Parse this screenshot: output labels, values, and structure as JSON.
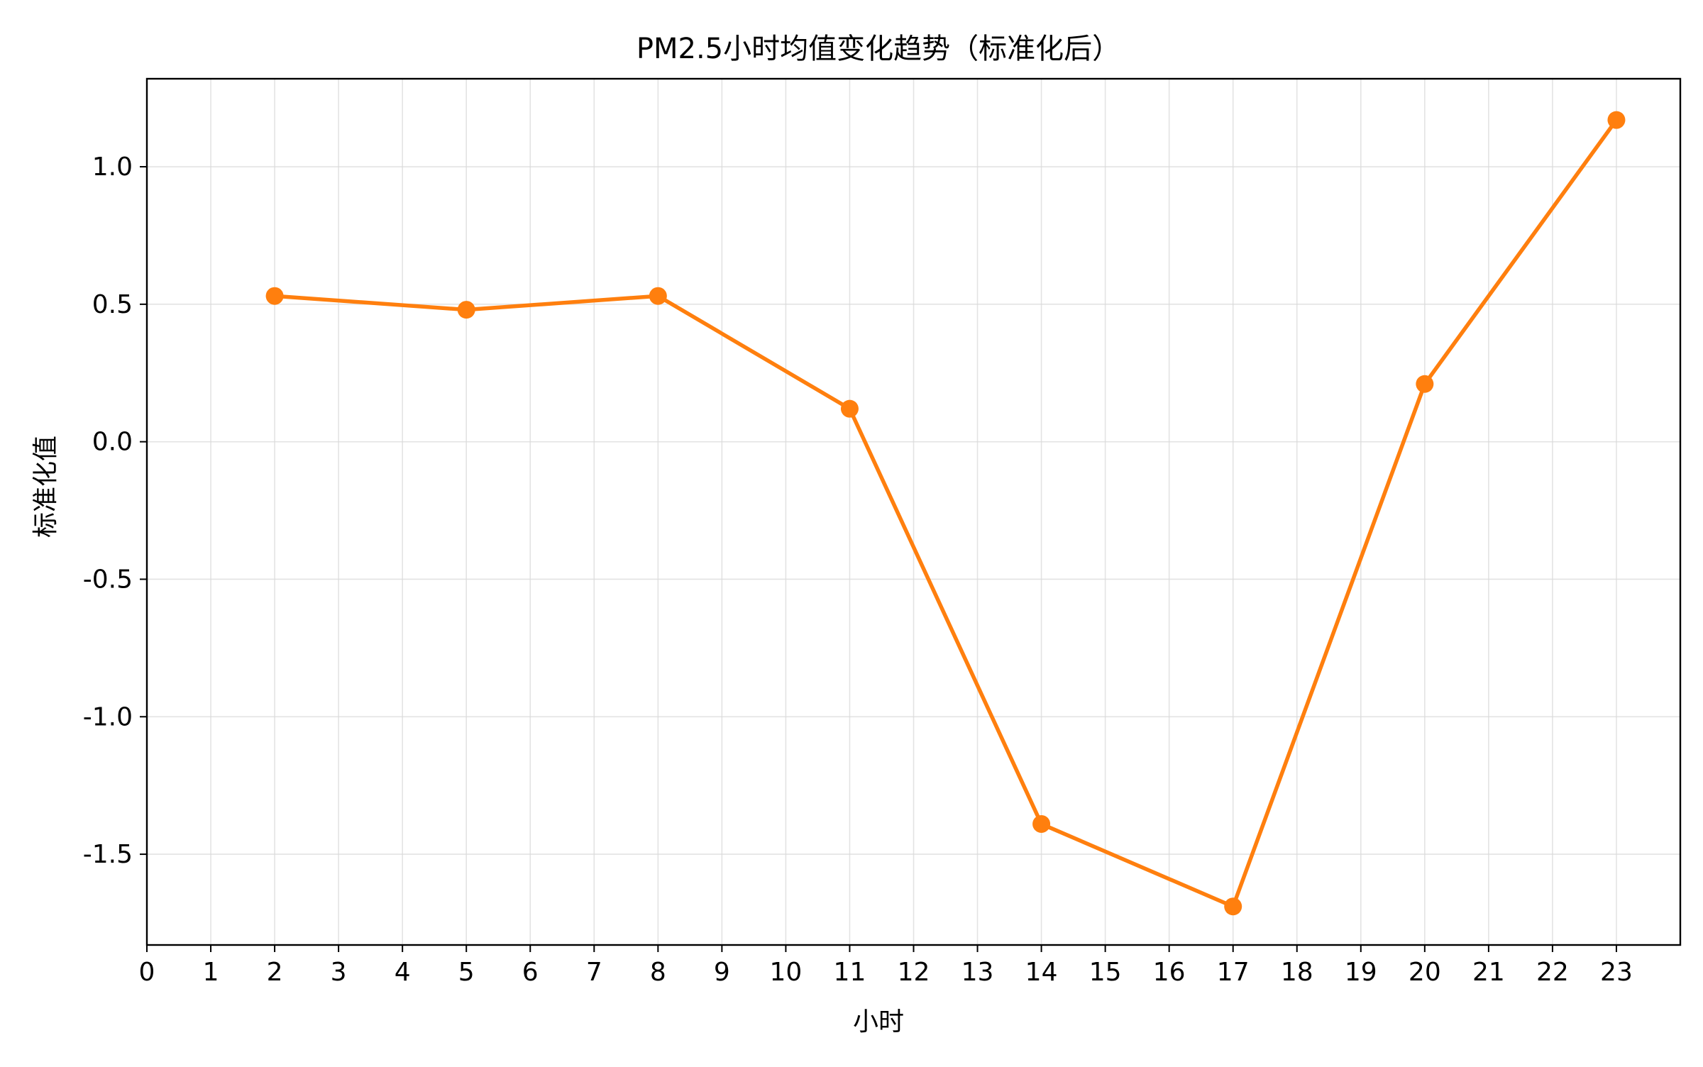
{
  "chart_data": {
    "type": "line",
    "title": "PM2.5小时均值变化趋势（标准化后）",
    "xlabel": "小时",
    "ylabel": "标准化值",
    "x_ticks": [
      0,
      1,
      2,
      3,
      4,
      5,
      6,
      7,
      8,
      9,
      10,
      11,
      12,
      13,
      14,
      15,
      16,
      17,
      18,
      19,
      20,
      21,
      22,
      23
    ],
    "y_ticks": [
      -1.5,
      -1.0,
      -0.5,
      0.0,
      0.5,
      1.0
    ],
    "y_tick_labels": [
      "-1.5",
      "-1.0",
      "-0.5",
      "0.0",
      "0.5",
      "1.0"
    ],
    "xlim": [
      0,
      24
    ],
    "ylim": [
      -1.83,
      1.32
    ],
    "grid": true,
    "colors": {
      "line": "#ff7f0e",
      "grid": "#d9d9d9",
      "axis": "#000000"
    },
    "series": [
      {
        "x": [
          2,
          5,
          8,
          11,
          14,
          17,
          20,
          23
        ],
        "values": [
          0.53,
          0.48,
          0.53,
          0.12,
          -1.39,
          -1.69,
          0.21,
          1.17
        ]
      }
    ]
  }
}
